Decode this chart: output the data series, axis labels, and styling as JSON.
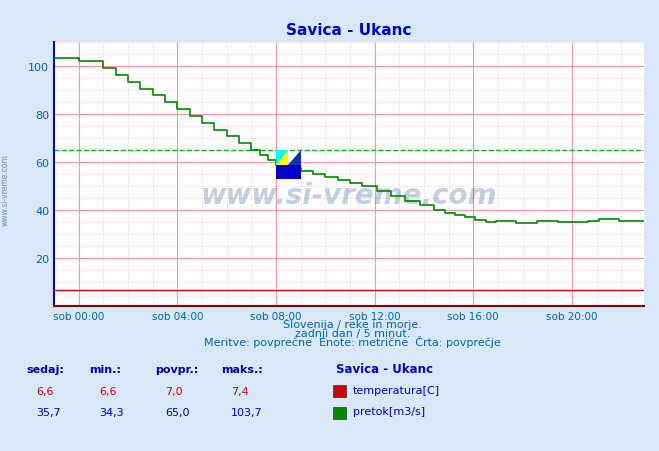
{
  "title": "Savica - Ukanc",
  "title_color": "#0000cc",
  "bg_color": "#d8e8f8",
  "plot_bg_color": "#ffffff",
  "grid_color_major": "#ff9999",
  "grid_color_minor": "#ffdddd",
  "xlabel_color": "#0066aa",
  "ylabel_color": "#0066aa",
  "watermark": "www.si-vreme.com",
  "watermark_color": "#336699",
  "footnote1": "Slovenija / reke in morje.",
  "footnote2": "zadnji dan / 5 minut.",
  "footnote3": "Meritve: povprečne  Enote: metrične  Črta: povprečje",
  "xlim_min": 0,
  "xlim_max": 287,
  "ylim_min": 0,
  "ylim_max": 110,
  "xtick_labels": [
    "sob 00:00",
    "sob 04:00",
    "sob 08:00",
    "sob 12:00",
    "sob 16:00",
    "sob 20:00"
  ],
  "xtick_positions": [
    12,
    60,
    108,
    156,
    204,
    252
  ],
  "ytick_positions": [
    20,
    40,
    60,
    80,
    100
  ],
  "avg_line_value": 65.0,
  "avg_line_color": "#00bb00",
  "temp_color": "#cc0000",
  "flow_color": "#008800",
  "legend_title": "Savica - Ukanc",
  "legend_color": "#0000cc",
  "table_headers": [
    "sedaj:",
    "min.:",
    "povpr.:",
    "maks.:"
  ],
  "table_temp": [
    "6,6",
    "6,6",
    "7,0",
    "7,4"
  ],
  "table_flow": [
    "35,7",
    "34,3",
    "65,0",
    "103,7"
  ],
  "label_temp": "temperatura[C]",
  "label_flow": "pretok[m3/s]",
  "label_color": "#0000cc",
  "table_color": "#0000aa",
  "spine_color": "#0000cc",
  "bottom_spine_color": "#880000"
}
